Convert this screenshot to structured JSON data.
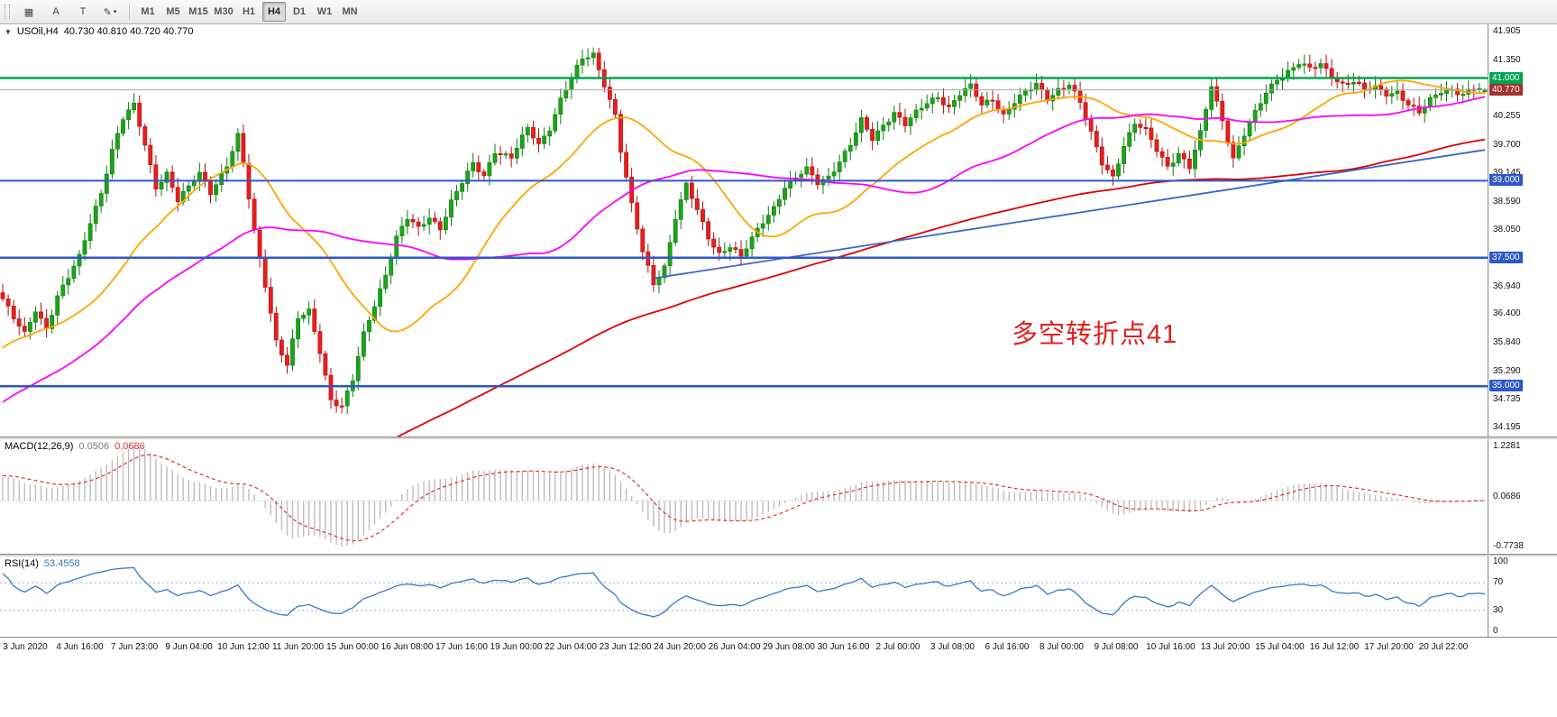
{
  "toolbar": {
    "tool_buttons": [
      {
        "name": "chart-grid",
        "glyph": "▦"
      },
      {
        "name": "text-label",
        "glyph": "A"
      },
      {
        "name": "text-box",
        "glyph": "T"
      },
      {
        "name": "draw-style",
        "glyph": "✎"
      }
    ],
    "dropdown_arrow": "▾",
    "timeframes": [
      "M1",
      "M5",
      "M15",
      "M30",
      "H1",
      "H4",
      "D1",
      "W1",
      "MN"
    ],
    "active_timeframe": "H4"
  },
  "chart": {
    "marker": "▼",
    "symbol_title": "USOil,H4",
    "ohlc_text": "40.730 40.810 40.720 40.770",
    "annotation": {
      "text": "多空转折点41",
      "color": "#E02020"
    },
    "price_axis_labels": [
      "41.905",
      "41.350",
      "40.805",
      "40.255",
      "39.700",
      "39.145",
      "38.590",
      "38.050",
      "37.500",
      "36.940",
      "36.400",
      "35.840",
      "35.290",
      "34.735",
      "34.195"
    ],
    "hlines": [
      {
        "price": 41.0,
        "label": "41.000",
        "color": "#00A651",
        "width": 2.5
      },
      {
        "price": 39.0,
        "label": "39.000",
        "color": "#2E58C8",
        "width": 2
      },
      {
        "price": 37.5,
        "label": "37.500",
        "color": "#2E58C8",
        "width": 2.5
      },
      {
        "price": 35.0,
        "label": "35.000",
        "color": "#2E58C8",
        "width": 2.5
      }
    ],
    "current_price": {
      "value": 40.77,
      "label": "40.770",
      "tag_bg": "#A03232",
      "line_color": "#A8A8A8"
    },
    "colors": {
      "up_fill": "#1CA31C",
      "up_stroke": "#0E7E0E",
      "down_fill": "#E81E1E",
      "down_stroke": "#AF1010",
      "ma_fast": "#FFA500",
      "ma_mid": "#FF00FF",
      "ma_slow": "#E00000",
      "trendline": "#3B66CC"
    }
  },
  "macd": {
    "title": "MACD(12,26,9)",
    "v1": "0.0506",
    "v2": "0.0686",
    "axis_labels": {
      "top": "1.2281",
      "mid": "0.0686",
      "bottom": "-0.7738"
    },
    "hist_color": "#BDBDBD",
    "signal_color": "#E03030"
  },
  "rsi": {
    "title": "RSI(14)",
    "value": "53.4558",
    "axis_labels": [
      "100",
      "70",
      "30",
      "0"
    ],
    "levels": [
      70,
      30
    ],
    "line_color": "#3878C8",
    "level_color": "#9FA8C8"
  },
  "time_axis": {
    "labels": [
      "3 Jun 2020",
      "4 Jun 16:00",
      "7 Jun 23:00",
      "9 Jun 04:00",
      "10 Jun 12:00",
      "11 Jun 20:00",
      "15 Jun 00:00",
      "16 Jun 08:00",
      "17 Jun 16:00",
      "19 Jun 00:00",
      "22 Jun 04:00",
      "23 Jun 12:00",
      "24 Jun 20:00",
      "26 Jun 04:00",
      "29 Jun 08:00",
      "30 Jun 16:00",
      "2 Jul 00:00",
      "3 Jul 08:00",
      "6 Jul 16:00",
      "8 Jul 00:00",
      "9 Jul 08:00",
      "10 Jul 16:00",
      "13 Jul 20:00",
      "15 Jul 04:00",
      "16 Jul 12:00",
      "17 Jul 20:00",
      "20 Jul 22:00"
    ]
  },
  "chart_data": {
    "type": "candlestick",
    "symbol": "USOil",
    "timeframe": "H4",
    "title": "USOil,H4 40.730 40.810 40.720 40.770",
    "ohlc_current": {
      "open": 40.73,
      "high": 40.81,
      "low": 40.72,
      "close": 40.77
    },
    "ylim": [
      34.195,
      41.905
    ],
    "y_ticks": [
      41.905,
      41.35,
      40.805,
      40.255,
      39.7,
      39.145,
      38.59,
      38.05,
      37.5,
      36.94,
      36.4,
      35.84,
      35.29,
      34.735,
      34.195
    ],
    "n_candles": 272,
    "price_waypoints": [
      [
        0,
        36.7
      ],
      [
        2,
        36.3
      ],
      [
        4,
        36.0
      ],
      [
        6,
        36.5
      ],
      [
        8,
        36.15
      ],
      [
        10,
        36.75
      ],
      [
        12,
        37.1
      ],
      [
        14,
        37.5
      ],
      [
        16,
        38.2
      ],
      [
        18,
        38.8
      ],
      [
        20,
        39.6
      ],
      [
        22,
        40.2
      ],
      [
        24,
        40.45
      ],
      [
        26,
        39.7
      ],
      [
        28,
        38.9
      ],
      [
        30,
        39.15
      ],
      [
        32,
        38.6
      ],
      [
        34,
        38.85
      ],
      [
        36,
        39.15
      ],
      [
        38,
        38.8
      ],
      [
        41,
        39.3
      ],
      [
        43,
        39.85
      ],
      [
        44,
        39.3
      ],
      [
        46,
        38.0
      ],
      [
        48,
        37.0
      ],
      [
        50,
        35.9
      ],
      [
        52,
        35.4
      ],
      [
        54,
        36.3
      ],
      [
        56,
        36.45
      ],
      [
        58,
        35.7
      ],
      [
        60,
        34.75
      ],
      [
        62,
        34.6
      ],
      [
        64,
        35.1
      ],
      [
        66,
        36.0
      ],
      [
        68,
        36.6
      ],
      [
        70,
        37.2
      ],
      [
        72,
        37.9
      ],
      [
        74,
        38.25
      ],
      [
        76,
        38.05
      ],
      [
        78,
        38.3
      ],
      [
        80,
        38.1
      ],
      [
        82,
        38.6
      ],
      [
        84,
        38.95
      ],
      [
        86,
        39.3
      ],
      [
        88,
        39.1
      ],
      [
        90,
        39.6
      ],
      [
        93,
        39.45
      ],
      [
        96,
        40.0
      ],
      [
        98,
        39.7
      ],
      [
        100,
        40.05
      ],
      [
        102,
        40.6
      ],
      [
        104,
        41.0
      ],
      [
        106,
        41.35
      ],
      [
        108,
        41.45
      ],
      [
        110,
        40.9
      ],
      [
        112,
        40.3
      ],
      [
        113,
        39.6
      ],
      [
        115,
        38.5
      ],
      [
        117,
        37.6
      ],
      [
        119,
        37.0
      ],
      [
        121,
        37.35
      ],
      [
        123,
        38.3
      ],
      [
        125,
        38.9
      ],
      [
        127,
        38.4
      ],
      [
        129,
        37.9
      ],
      [
        131,
        37.6
      ],
      [
        133,
        37.75
      ],
      [
        135,
        37.5
      ],
      [
        137,
        37.85
      ],
      [
        139,
        38.2
      ],
      [
        141,
        38.5
      ],
      [
        143,
        38.9
      ],
      [
        145,
        39.05
      ],
      [
        147,
        39.2
      ],
      [
        149,
        38.95
      ],
      [
        151,
        39.1
      ],
      [
        153,
        39.4
      ],
      [
        155,
        39.7
      ],
      [
        157,
        40.15
      ],
      [
        159,
        39.8
      ],
      [
        161,
        40.1
      ],
      [
        163,
        40.35
      ],
      [
        165,
        40.1
      ],
      [
        167,
        40.3
      ],
      [
        169,
        40.5
      ],
      [
        171,
        40.65
      ],
      [
        173,
        40.45
      ],
      [
        175,
        40.7
      ],
      [
        177,
        40.82
      ],
      [
        179,
        40.45
      ],
      [
        181,
        40.6
      ],
      [
        183,
        40.3
      ],
      [
        185,
        40.55
      ],
      [
        187,
        40.7
      ],
      [
        189,
        40.85
      ],
      [
        191,
        40.6
      ],
      [
        193,
        40.8
      ],
      [
        195,
        40.9
      ],
      [
        197,
        40.5
      ],
      [
        199,
        39.9
      ],
      [
        201,
        39.35
      ],
      [
        203,
        39.1
      ],
      [
        205,
        39.7
      ],
      [
        207,
        40.1
      ],
      [
        209,
        39.95
      ],
      [
        211,
        39.6
      ],
      [
        213,
        39.3
      ],
      [
        215,
        39.55
      ],
      [
        217,
        39.25
      ],
      [
        219,
        39.9
      ],
      [
        221,
        40.85
      ],
      [
        223,
        40.2
      ],
      [
        225,
        39.45
      ],
      [
        227,
        39.9
      ],
      [
        229,
        40.3
      ],
      [
        231,
        40.7
      ],
      [
        233,
        41.0
      ],
      [
        235,
        41.15
      ],
      [
        237,
        41.3
      ],
      [
        239,
        41.15
      ],
      [
        241,
        41.25
      ],
      [
        243,
        41.05
      ],
      [
        245,
        40.9
      ],
      [
        247,
        40.95
      ],
      [
        249,
        40.75
      ],
      [
        251,
        40.8
      ],
      [
        253,
        40.7
      ],
      [
        255,
        40.75
      ],
      [
        257,
        40.5
      ],
      [
        259,
        40.3
      ],
      [
        261,
        40.55
      ],
      [
        263,
        40.75
      ],
      [
        265,
        40.8
      ],
      [
        267,
        40.7
      ],
      [
        269,
        40.78
      ],
      [
        271,
        40.77
      ]
    ],
    "wiggle": {
      "a1": 0.04,
      "f1": 1.93,
      "a2": 0.04,
      "f2": 0.61
    },
    "horizontal_line_prices": [
      41.0,
      39.0,
      37.5,
      35.0
    ],
    "trendline": {
      "from_candle": 119,
      "from_price": 37.1,
      "to_candle": 271,
      "to_price": 39.6
    },
    "moving_averages": [
      {
        "color": "orange",
        "type": "sma",
        "period": 26
      },
      {
        "color": "magenta",
        "type": "sma",
        "period": 55
      },
      {
        "color": "red",
        "type": "sma",
        "period": 200
      }
    ],
    "prehistory": {
      "bars": 200,
      "from": 22.0,
      "to": 36.6
    },
    "indicators": [
      {
        "name": "MACD",
        "params": [
          12,
          26,
          9
        ],
        "current": [
          0.0506,
          0.0686
        ],
        "axis_range": [
          -0.7738,
          1.2281
        ]
      },
      {
        "name": "RSI",
        "params": [
          14
        ],
        "current": 53.4558,
        "levels": [
          30,
          70
        ],
        "range": [
          0,
          100
        ]
      }
    ],
    "x_labels": [
      "3 Jun 2020",
      "4 Jun 16:00",
      "7 Jun 23:00",
      "9 Jun 04:00",
      "10 Jun 12:00",
      "11 Jun 20:00",
      "15 Jun 00:00",
      "16 Jun 08:00",
      "17 Jun 16:00",
      "19 Jun 00:00",
      "22 Jun 04:00",
      "23 Jun 12:00",
      "24 Jun 20:00",
      "26 Jun 04:00",
      "29 Jun 08:00",
      "30 Jun 16:00",
      "2 Jul 00:00",
      "3 Jul 08:00",
      "6 Jul 16:00",
      "8 Jul 00:00",
      "9 Jul 08:00",
      "10 Jul 16:00",
      "13 Jul 20:00",
      "15 Jul 04:00",
      "16 Jul 12:00",
      "17 Jul 20:00",
      "20 Jul 22:00"
    ]
  }
}
